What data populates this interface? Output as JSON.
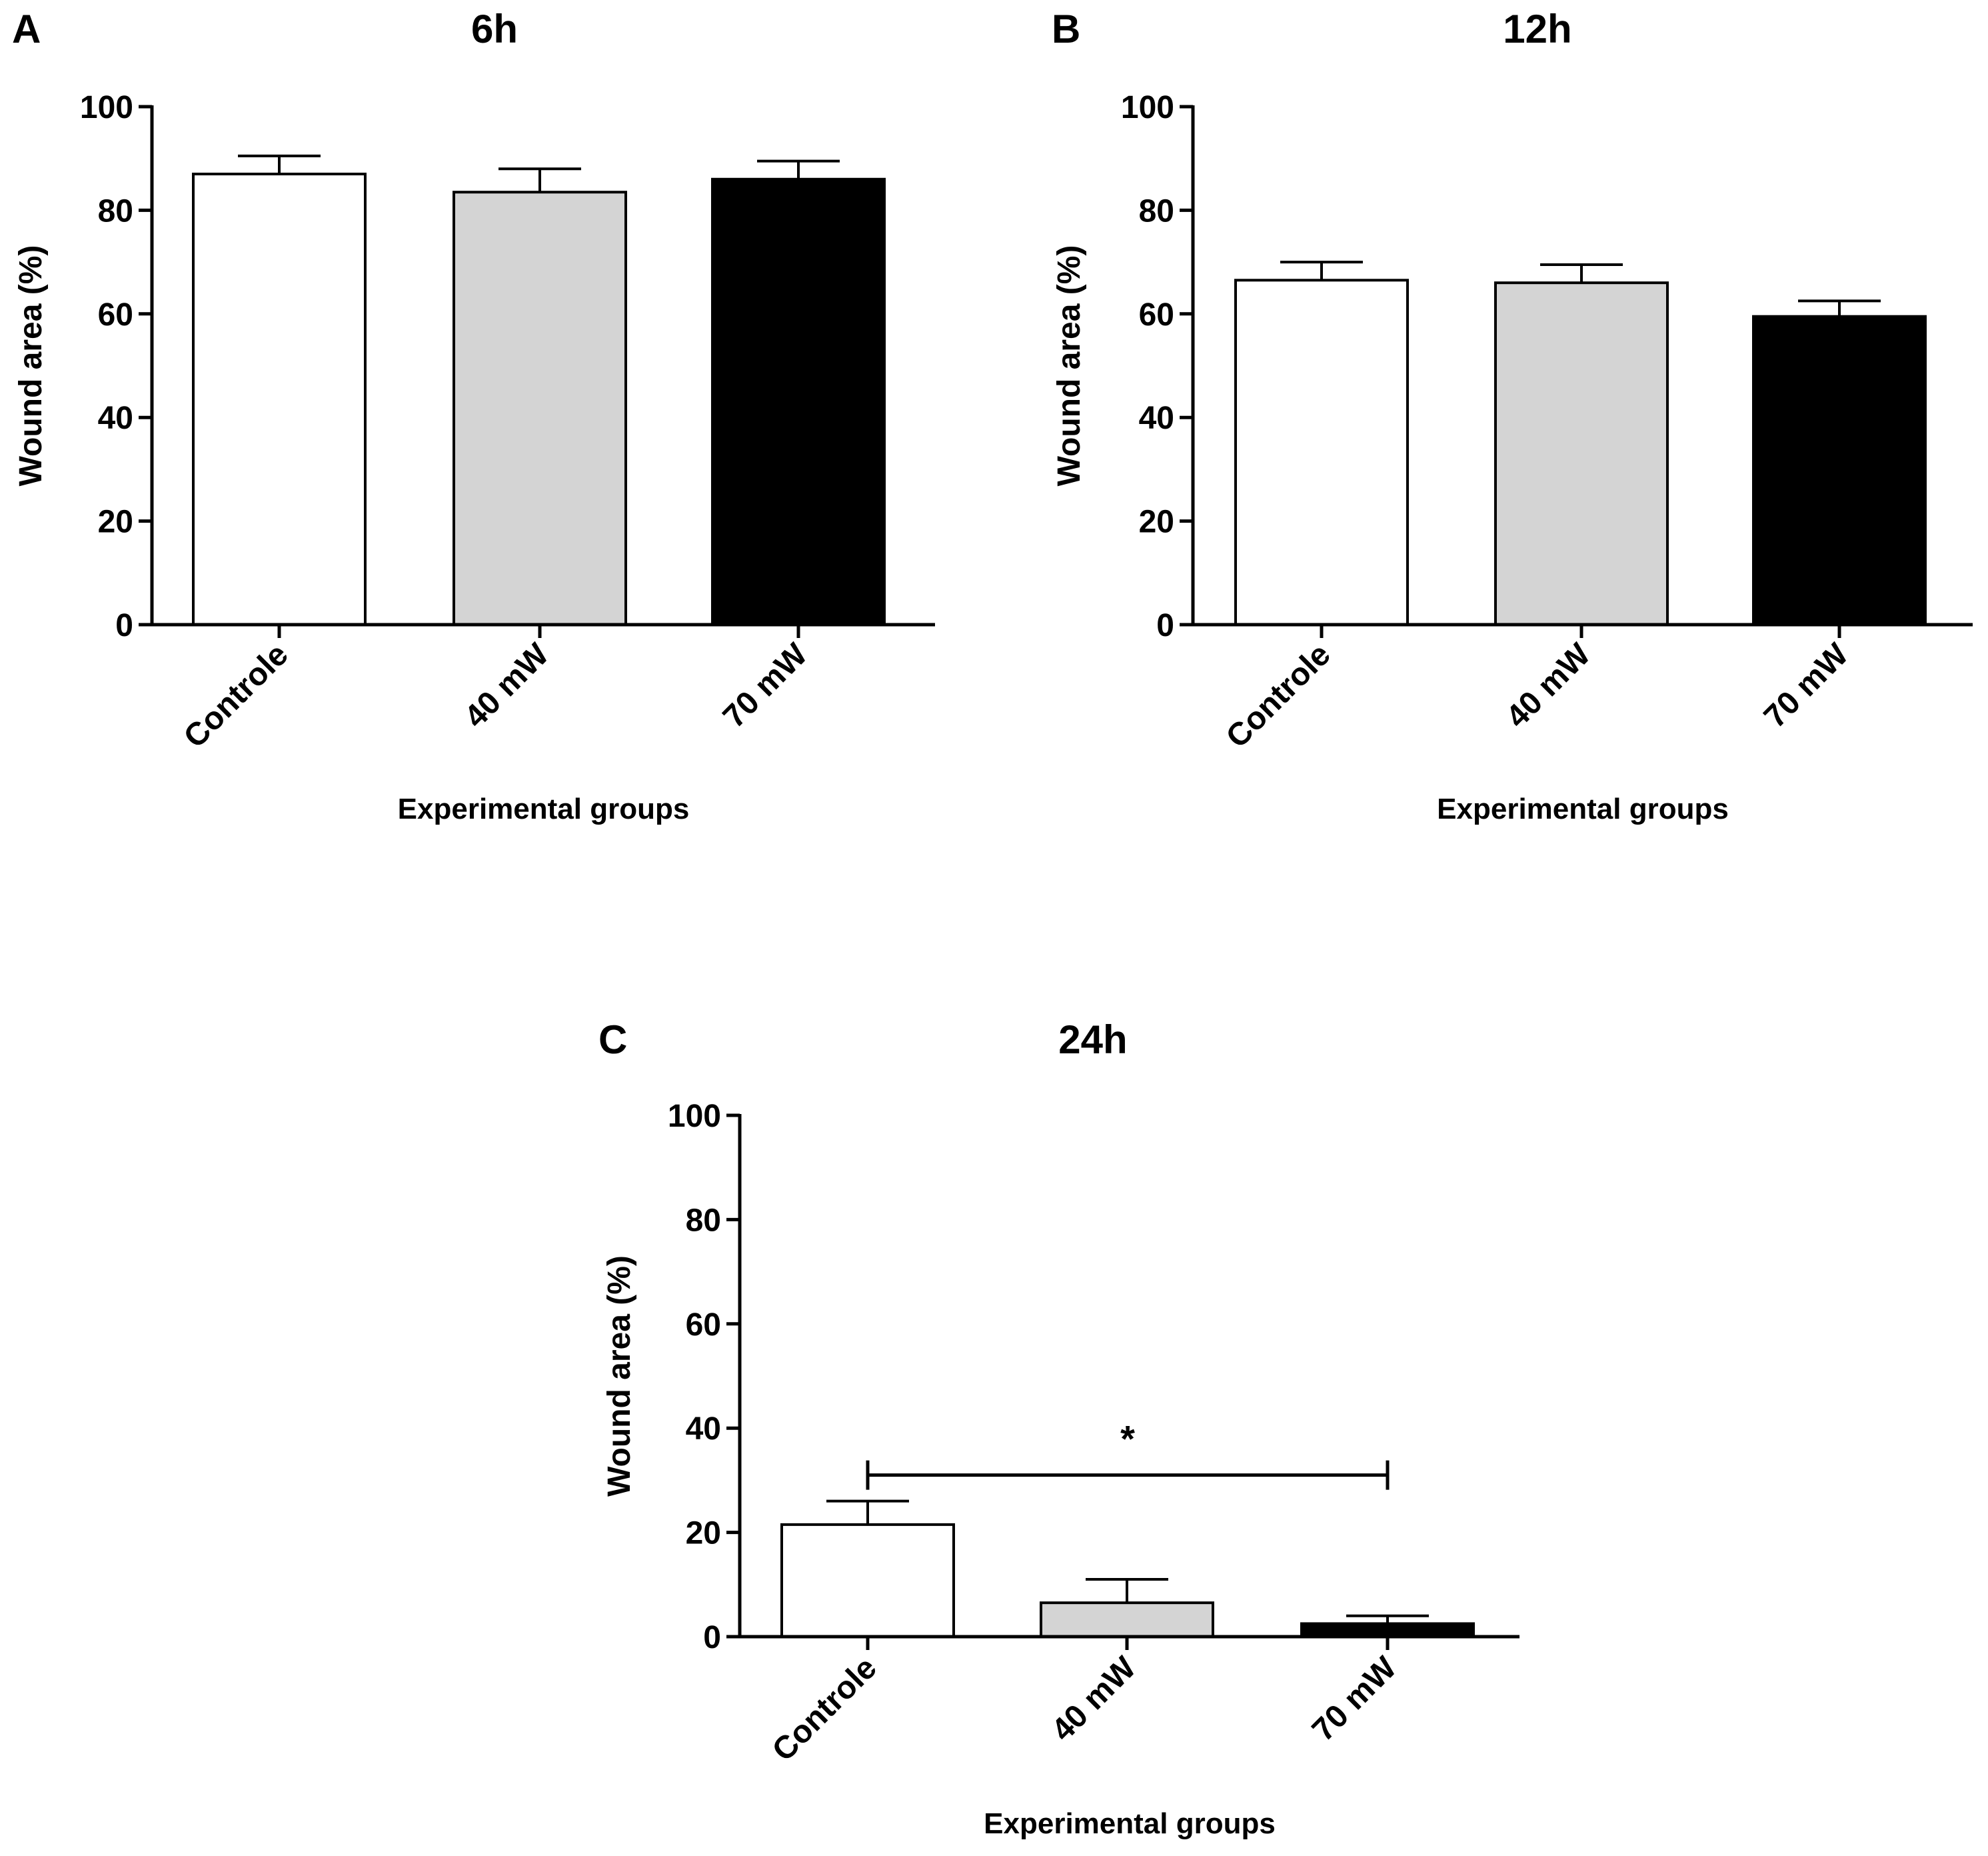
{
  "figure": {
    "panels": [
      "A",
      "B",
      "C"
    ]
  },
  "chart_data": [
    {
      "panel": "A",
      "type": "bar",
      "title": "6h",
      "xlabel": "Experimental groups",
      "ylabel": "Wound area (%)",
      "categories": [
        "Controle",
        "40 mW",
        "70 mW"
      ],
      "values": [
        87,
        83.5,
        86
      ],
      "errors": [
        3.5,
        4.5,
        3.5
      ],
      "colors": [
        "#ffffff",
        "#d4d4d4",
        "#000000"
      ],
      "ylim": [
        0,
        100
      ],
      "yticks": [
        0,
        20,
        40,
        60,
        80,
        100
      ],
      "significance": null
    },
    {
      "panel": "B",
      "type": "bar",
      "title": "12h",
      "xlabel": "Experimental groups",
      "ylabel": "Wound area (%)",
      "categories": [
        "Controle",
        "40 mW",
        "70 mW"
      ],
      "values": [
        66.5,
        66,
        59.5
      ],
      "errors": [
        3.5,
        3.5,
        3
      ],
      "colors": [
        "#ffffff",
        "#d4d4d4",
        "#000000"
      ],
      "ylim": [
        0,
        100
      ],
      "yticks": [
        0,
        20,
        40,
        60,
        80,
        100
      ],
      "significance": null
    },
    {
      "panel": "C",
      "type": "bar",
      "title": "24h",
      "xlabel": "Experimental groups",
      "ylabel": "Wound area (%)",
      "categories": [
        "Controle",
        "40 mW",
        "70 mW"
      ],
      "values": [
        21.5,
        6.5,
        2.5
      ],
      "errors": [
        4.5,
        4.5,
        1.5
      ],
      "colors": [
        "#ffffff",
        "#d4d4d4",
        "#000000"
      ],
      "ylim": [
        0,
        100
      ],
      "yticks": [
        0,
        20,
        40,
        60,
        80,
        100
      ],
      "significance": {
        "from": 0,
        "to": 2,
        "y": 31,
        "label": "*"
      }
    }
  ]
}
